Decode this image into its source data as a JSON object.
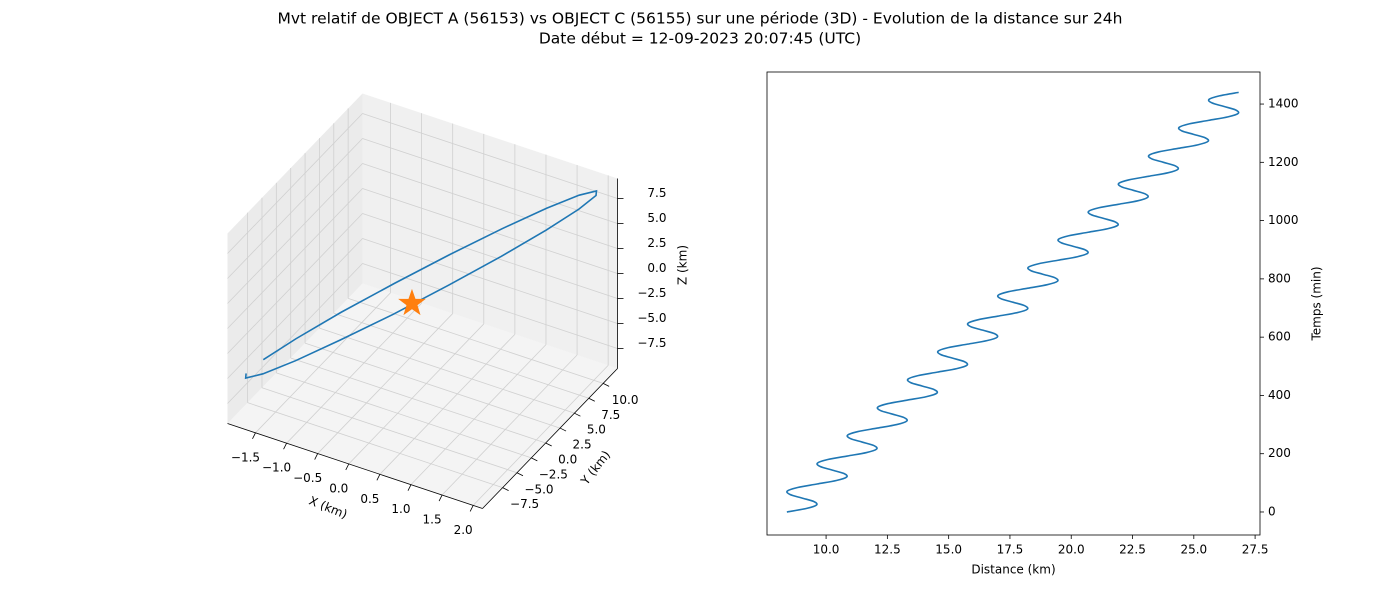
{
  "title": "Mvt relatif de OBJECT A (56153) vs OBJECT C (56155) sur une période (3D) - Evolution de la distance sur 24h",
  "subtitle": "Date début = 12-09-2023 20:07:45 (UTC)",
  "chart_data": [
    {
      "type": "line3d",
      "xlabel": "X (km)",
      "ylabel": "Y (km)",
      "zlabel": "Z (km)",
      "xlim": [
        -1.95,
        2.15
      ],
      "ylim": [
        -11,
        12.5
      ],
      "zlim": [
        -9.5,
        9.5
      ],
      "xticks": [
        {
          "value": -1.5,
          "label": "−1.5"
        },
        {
          "value": -1,
          "label": "−1.0"
        },
        {
          "value": -0.5,
          "label": "−0.5"
        },
        {
          "value": 0,
          "label": "0.0"
        },
        0.5,
        {
          "value": 1,
          "label": "1.0"
        },
        1.5,
        {
          "value": 2,
          "label": "2.0"
        }
      ],
      "yticks": [
        {
          "value": -7.5,
          "label": "−7.5"
        },
        {
          "value": -5,
          "label": "−5.0"
        },
        {
          "value": -2.5,
          "label": "−2.5"
        },
        {
          "value": 0,
          "label": "0.0"
        },
        2.5,
        {
          "value": 5,
          "label": "5.0"
        },
        7.5,
        {
          "value": 10,
          "label": "10.0"
        }
      ],
      "zticks": [
        {
          "value": -7.5,
          "label": "−7.5"
        },
        {
          "value": -5,
          "label": "−5.0"
        },
        {
          "value": -2.5,
          "label": "−2.5"
        },
        {
          "value": 0,
          "label": "0.0"
        },
        2.5,
        {
          "value": 5,
          "label": "5.0"
        },
        7.5
      ],
      "grid": true,
      "series": [
        {
          "type": "line",
          "color": "#1f77b4",
          "x": [
            -1.72,
            -1.44,
            -1.01,
            -0.46,
            0.13,
            0.72,
            1.25,
            1.67,
            1.94,
            2.02,
            1.92,
            1.64,
            1.21,
            0.67,
            0.08,
            -0.52,
            -1.05,
            -1.47,
            -1.74,
            -1.82
          ],
          "y": [
            -7.26,
            -4.6,
            -1.43,
            1.93,
            5.11,
            7.86,
            9.9,
            11.02,
            11.11,
            10.17,
            8.27,
            5.62,
            2.46,
            -0.88,
            -4.09,
            -6.85,
            -8.89,
            -10.02,
            -10.11,
            -9.17
          ],
          "z": [
            -4.87,
            -3.78,
            -2.14,
            -0.1,
            2.09,
            4.27,
            6.21,
            7.72,
            8.65,
            8.92,
            8.48,
            7.39,
            5.75,
            3.73,
            1.52,
            -0.66,
            -2.61,
            -4.12,
            -5.05,
            -5.31
          ]
        },
        {
          "type": "scatter",
          "marker": "star",
          "color": "#ff7f0e",
          "x": [
            0
          ],
          "y": [
            0
          ],
          "z": [
            0
          ]
        }
      ]
    },
    {
      "type": "line",
      "xlabel": "Distance (km)",
      "ylabel": "Temps (min)",
      "xlim": [
        7.59,
        27.7
      ],
      "ylim": [
        -79,
        1510
      ],
      "xticks": [
        {
          "value": 10,
          "label": "10.0"
        },
        12.5,
        {
          "value": 15,
          "label": "15.0"
        },
        17.5,
        {
          "value": 20,
          "label": "20.0"
        },
        22.5,
        {
          "value": 25,
          "label": "25.0"
        },
        27.5
      ],
      "yticks": [
        0,
        200,
        400,
        600,
        800,
        1000,
        1200,
        1400
      ],
      "yaxis_side": "right",
      "color": "#1f77b4",
      "x": [
        8.4,
        9.19,
        9.61,
        9.5,
        9.01,
        8.53,
        8.42,
        8.84,
        9.63,
        10.42,
        10.84,
        10.73,
        10.24,
        9.76,
        9.65,
        10.07,
        10.86,
        11.65,
        12.06,
        11.95,
        11.47,
        10.99,
        10.88,
        11.3,
        12.09,
        12.88,
        13.29,
        13.18,
        12.7,
        12.22,
        12.11,
        12.53,
        13.32,
        14.1,
        14.52,
        14.41,
        13.93,
        13.45,
        13.34,
        13.75,
        14.54,
        15.33,
        15.75,
        15.64,
        15.16,
        14.68,
        14.57,
        14.98,
        15.77,
        16.56,
        16.98,
        16.87,
        16.39,
        15.9,
        15.79,
        16.21,
        17.0,
        17.79,
        18.21,
        18.1,
        17.62,
        17.13,
        17.02,
        17.44,
        18.23,
        19.02,
        19.44,
        19.33,
        18.84,
        18.36,
        18.25,
        18.67,
        19.46,
        20.25,
        20.67,
        20.56,
        20.07,
        19.59,
        19.48,
        19.9,
        20.69,
        21.48,
        21.9,
        21.78,
        21.3,
        20.82,
        20.71,
        21.13,
        21.92,
        22.71,
        23.12,
        23.01,
        22.53,
        22.05,
        21.94,
        22.36,
        23.15,
        23.94,
        24.35,
        24.24,
        23.76,
        23.28,
        23.17,
        23.58,
        24.37,
        25.16,
        25.58,
        25.47,
        24.99,
        24.51,
        24.4,
        24.81,
        25.6,
        26.39,
        26.81,
        26.7,
        26.22,
        25.74,
        25.62,
        26.04,
        26.83
      ],
      "y": [
        0,
        12,
        24,
        36,
        48,
        60,
        72,
        84,
        96,
        108,
        120,
        132,
        144,
        156,
        168,
        180,
        192,
        204,
        216,
        228,
        240,
        252,
        264,
        276,
        288,
        300,
        312,
        324,
        336,
        348,
        360,
        372,
        384,
        396,
        408,
        420,
        432,
        444,
        456,
        468,
        480,
        492,
        504,
        516,
        528,
        540,
        552,
        564,
        576,
        588,
        600,
        612,
        624,
        636,
        648,
        660,
        672,
        684,
        696,
        708,
        720,
        732,
        744,
        756,
        768,
        780,
        792,
        804,
        816,
        828,
        840,
        852,
        864,
        876,
        888,
        900,
        912,
        924,
        936,
        948,
        960,
        972,
        984,
        996,
        1008,
        1020,
        1032,
        1044,
        1056,
        1068,
        1080,
        1092,
        1104,
        1116,
        1128,
        1140,
        1152,
        1164,
        1176,
        1188,
        1200,
        1212,
        1224,
        1236,
        1248,
        1260,
        1272,
        1284,
        1296,
        1308,
        1320,
        1332,
        1344,
        1356,
        1368,
        1380,
        1392,
        1404,
        1416,
        1428,
        1440
      ]
    }
  ]
}
